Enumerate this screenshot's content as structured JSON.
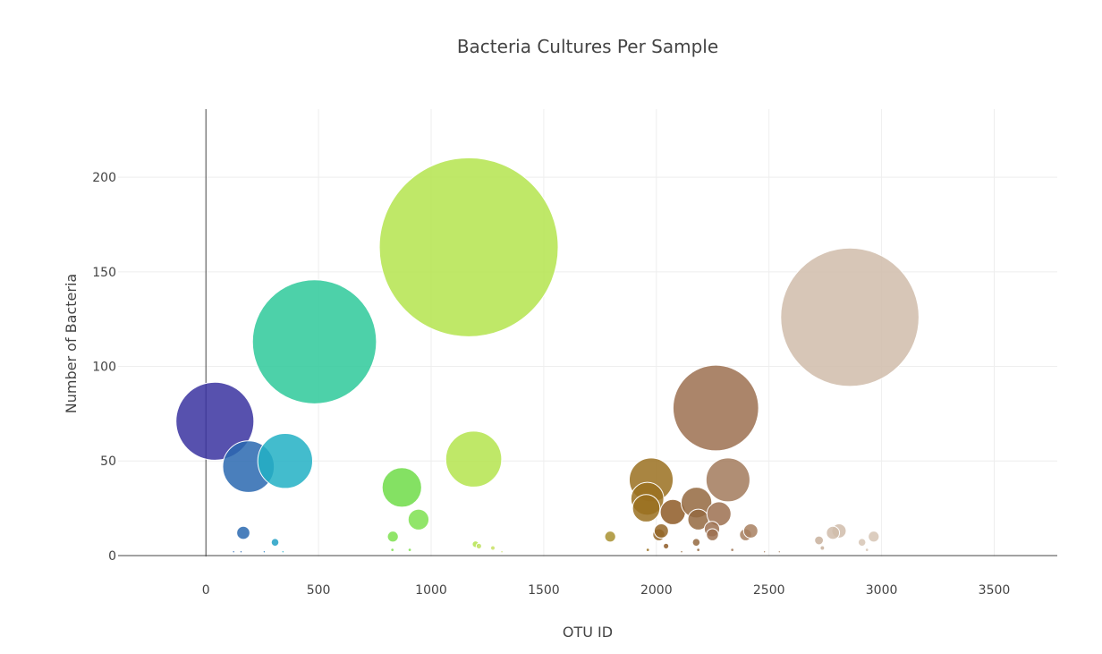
{
  "chart_data": {
    "type": "scatter",
    "title": "Bacteria Cultures Per Sample",
    "xlabel": "OTU ID",
    "ylabel": "Number of Bacteria",
    "xlim": [
      -390,
      3780
    ],
    "ylim": [
      -0.5,
      236
    ],
    "xticks": [
      0,
      500,
      1000,
      1500,
      2000,
      2500,
      3000,
      3500
    ],
    "yticks": [
      0,
      50,
      100,
      150,
      200
    ],
    "grid": true,
    "legend": "none",
    "bubbles": [
      {
        "x": 40,
        "y": 71,
        "size": 71,
        "color": "#3a33a0"
      },
      {
        "x": 189,
        "y": 47,
        "size": 47,
        "color": "#2a68b0"
      },
      {
        "x": 352,
        "y": 50,
        "size": 50,
        "color": "#22b0c4"
      },
      {
        "x": 166,
        "y": 12,
        "size": 12,
        "color": "#2a68b0"
      },
      {
        "x": 307,
        "y": 7,
        "size": 7,
        "color": "#22a0c4"
      },
      {
        "x": 482,
        "y": 113,
        "size": 113,
        "color": "#2ec99a"
      },
      {
        "x": 870,
        "y": 36,
        "size": 36,
        "color": "#6edc48"
      },
      {
        "x": 944,
        "y": 19,
        "size": 19,
        "color": "#7ee050"
      },
      {
        "x": 830,
        "y": 10,
        "size": 10,
        "color": "#7ee050"
      },
      {
        "x": 1167,
        "y": 163,
        "size": 163,
        "color": "#b4e44e"
      },
      {
        "x": 1189,
        "y": 51,
        "size": 51,
        "color": "#b4e44e"
      },
      {
        "x": 1197,
        "y": 6,
        "size": 6,
        "color": "#b4e44e"
      },
      {
        "x": 1795,
        "y": 10,
        "size": 10,
        "color": "#a89030"
      },
      {
        "x": 1977,
        "y": 40,
        "size": 40,
        "color": "#9a7020"
      },
      {
        "x": 1960,
        "y": 30,
        "size": 30,
        "color": "#9a7020"
      },
      {
        "x": 1955,
        "y": 25,
        "size": 25,
        "color": "#9a7020"
      },
      {
        "x": 2011,
        "y": 11,
        "size": 11,
        "color": "#946628"
      },
      {
        "x": 2022,
        "y": 13,
        "size": 13,
        "color": "#946628"
      },
      {
        "x": 2073,
        "y": 23,
        "size": 23,
        "color": "#8e5a26"
      },
      {
        "x": 2178,
        "y": 28,
        "size": 28,
        "color": "#946840"
      },
      {
        "x": 2186,
        "y": 19,
        "size": 19,
        "color": "#946840"
      },
      {
        "x": 2264,
        "y": 78,
        "size": 78,
        "color": "#9c7050"
      },
      {
        "x": 2278,
        "y": 22,
        "size": 22,
        "color": "#9c7050"
      },
      {
        "x": 2318,
        "y": 40,
        "size": 40,
        "color": "#a27a5c"
      },
      {
        "x": 2247,
        "y": 14,
        "size": 14,
        "color": "#9c7050"
      },
      {
        "x": 2249,
        "y": 11,
        "size": 11,
        "color": "#9c7050"
      },
      {
        "x": 2177,
        "y": 7,
        "size": 7,
        "color": "#946840"
      },
      {
        "x": 2043,
        "y": 5,
        "size": 5,
        "color": "#8e5a26"
      },
      {
        "x": 2396,
        "y": 11,
        "size": 11,
        "color": "#a88060"
      },
      {
        "x": 2419,
        "y": 13,
        "size": 13,
        "color": "#a88060"
      },
      {
        "x": 2859,
        "y": 126,
        "size": 126,
        "color": "#d0bcaa"
      },
      {
        "x": 2811,
        "y": 13,
        "size": 13,
        "color": "#d0bcaa"
      },
      {
        "x": 2784,
        "y": 12,
        "size": 12,
        "color": "#d0bcaa"
      },
      {
        "x": 2722,
        "y": 8,
        "size": 8,
        "color": "#c8b09c"
      },
      {
        "x": 2965,
        "y": 10,
        "size": 10,
        "color": "#d6c4b4"
      },
      {
        "x": 2913,
        "y": 7,
        "size": 7,
        "color": "#d6c4b4"
      },
      {
        "x": 2737,
        "y": 4,
        "size": 4,
        "color": "#c8b09c"
      },
      {
        "x": 1274,
        "y": 4,
        "size": 4,
        "color": "#c8e060"
      },
      {
        "x": 1212,
        "y": 5,
        "size": 5,
        "color": "#c0e060"
      },
      {
        "x": 828,
        "y": 3,
        "size": 3,
        "color": "#7ee050"
      },
      {
        "x": 905,
        "y": 3,
        "size": 3,
        "color": "#7ee050"
      },
      {
        "x": 1314,
        "y": 2,
        "size": 2,
        "color": "#c8e060"
      },
      {
        "x": 123,
        "y": 2,
        "size": 2,
        "color": "#2a68b0"
      },
      {
        "x": 156,
        "y": 2,
        "size": 2,
        "color": "#2a68b0"
      },
      {
        "x": 259,
        "y": 2,
        "size": 2,
        "color": "#2a80c0"
      },
      {
        "x": 342,
        "y": 2,
        "size": 2,
        "color": "#22b0c4"
      },
      {
        "x": 1962,
        "y": 3,
        "size": 3,
        "color": "#9a7020"
      },
      {
        "x": 2112,
        "y": 2,
        "size": 2,
        "color": "#8e5a26"
      },
      {
        "x": 2337,
        "y": 3,
        "size": 3,
        "color": "#a27a5c"
      },
      {
        "x": 2186,
        "y": 3,
        "size": 3,
        "color": "#946840"
      },
      {
        "x": 2935,
        "y": 3,
        "size": 3,
        "color": "#d6c4b4"
      },
      {
        "x": 2480,
        "y": 2,
        "size": 2,
        "color": "#a88060"
      },
      {
        "x": 2546,
        "y": 2,
        "size": 2,
        "color": "#b08c70"
      }
    ]
  }
}
